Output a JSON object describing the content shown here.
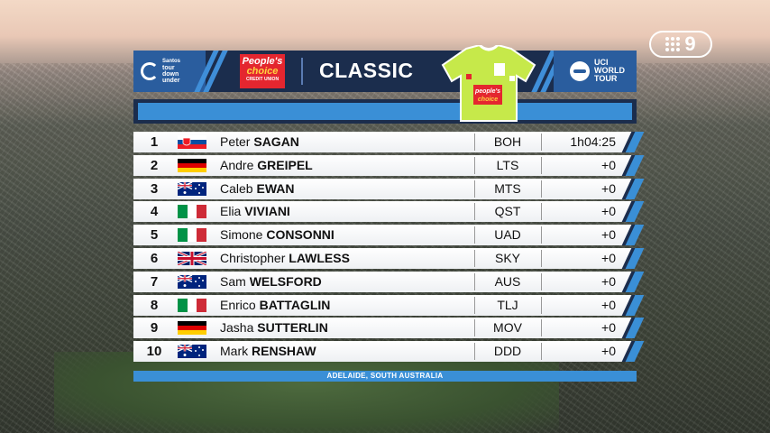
{
  "broadcaster": {
    "logo_text": "9"
  },
  "header": {
    "sponsor_left": [
      "Santos",
      "tour",
      "down",
      "under"
    ],
    "sponsor_mid": {
      "line1": "People's",
      "line2": "choice",
      "line3": "CREDIT UNION"
    },
    "title": "CLASSIC",
    "sponsor_right": [
      "UCI",
      "WORLD",
      "TOUR"
    ]
  },
  "jersey": {
    "sponsor_line1": "people's",
    "sponsor_line2": "choice",
    "colors": {
      "body": "#c6e94a",
      "trim": "#ffffff"
    }
  },
  "results": [
    {
      "pos": "1",
      "flag": "SVK",
      "first": "Peter",
      "last": "SAGAN",
      "team": "BOH",
      "time": "1h04:25"
    },
    {
      "pos": "2",
      "flag": "GER",
      "first": "Andre",
      "last": "GREIPEL",
      "team": "LTS",
      "time": "+0"
    },
    {
      "pos": "3",
      "flag": "AUS",
      "first": "Caleb",
      "last": "EWAN",
      "team": "MTS",
      "time": "+0"
    },
    {
      "pos": "4",
      "flag": "ITA",
      "first": "Elia",
      "last": "VIVIANI",
      "team": "QST",
      "time": "+0"
    },
    {
      "pos": "5",
      "flag": "ITA",
      "first": "Simone",
      "last": "CONSONNI",
      "team": "UAD",
      "time": "+0"
    },
    {
      "pos": "6",
      "flag": "GBR",
      "first": "Christopher",
      "last": "LAWLESS",
      "team": "SKY",
      "time": "+0"
    },
    {
      "pos": "7",
      "flag": "AUS",
      "first": "Sam",
      "last": "WELSFORD",
      "team": "AUS",
      "time": "+0"
    },
    {
      "pos": "8",
      "flag": "ITA",
      "first": "Enrico",
      "last": "BATTAGLIN",
      "team": "TLJ",
      "time": "+0"
    },
    {
      "pos": "9",
      "flag": "GER",
      "first": "Jasha",
      "last": "SUTTERLIN",
      "team": "MOV",
      "time": "+0"
    },
    {
      "pos": "10",
      "flag": "AUS",
      "first": "Mark",
      "last": "RENSHAW",
      "team": "DDD",
      "time": "+0"
    }
  ],
  "footer": {
    "location": "ADELAIDE, SOUTH AUSTRALIA"
  },
  "colors": {
    "navy": "#1b2d4d",
    "accent_blue": "#3a8fd6",
    "sponsor_red": "#e4262f"
  }
}
